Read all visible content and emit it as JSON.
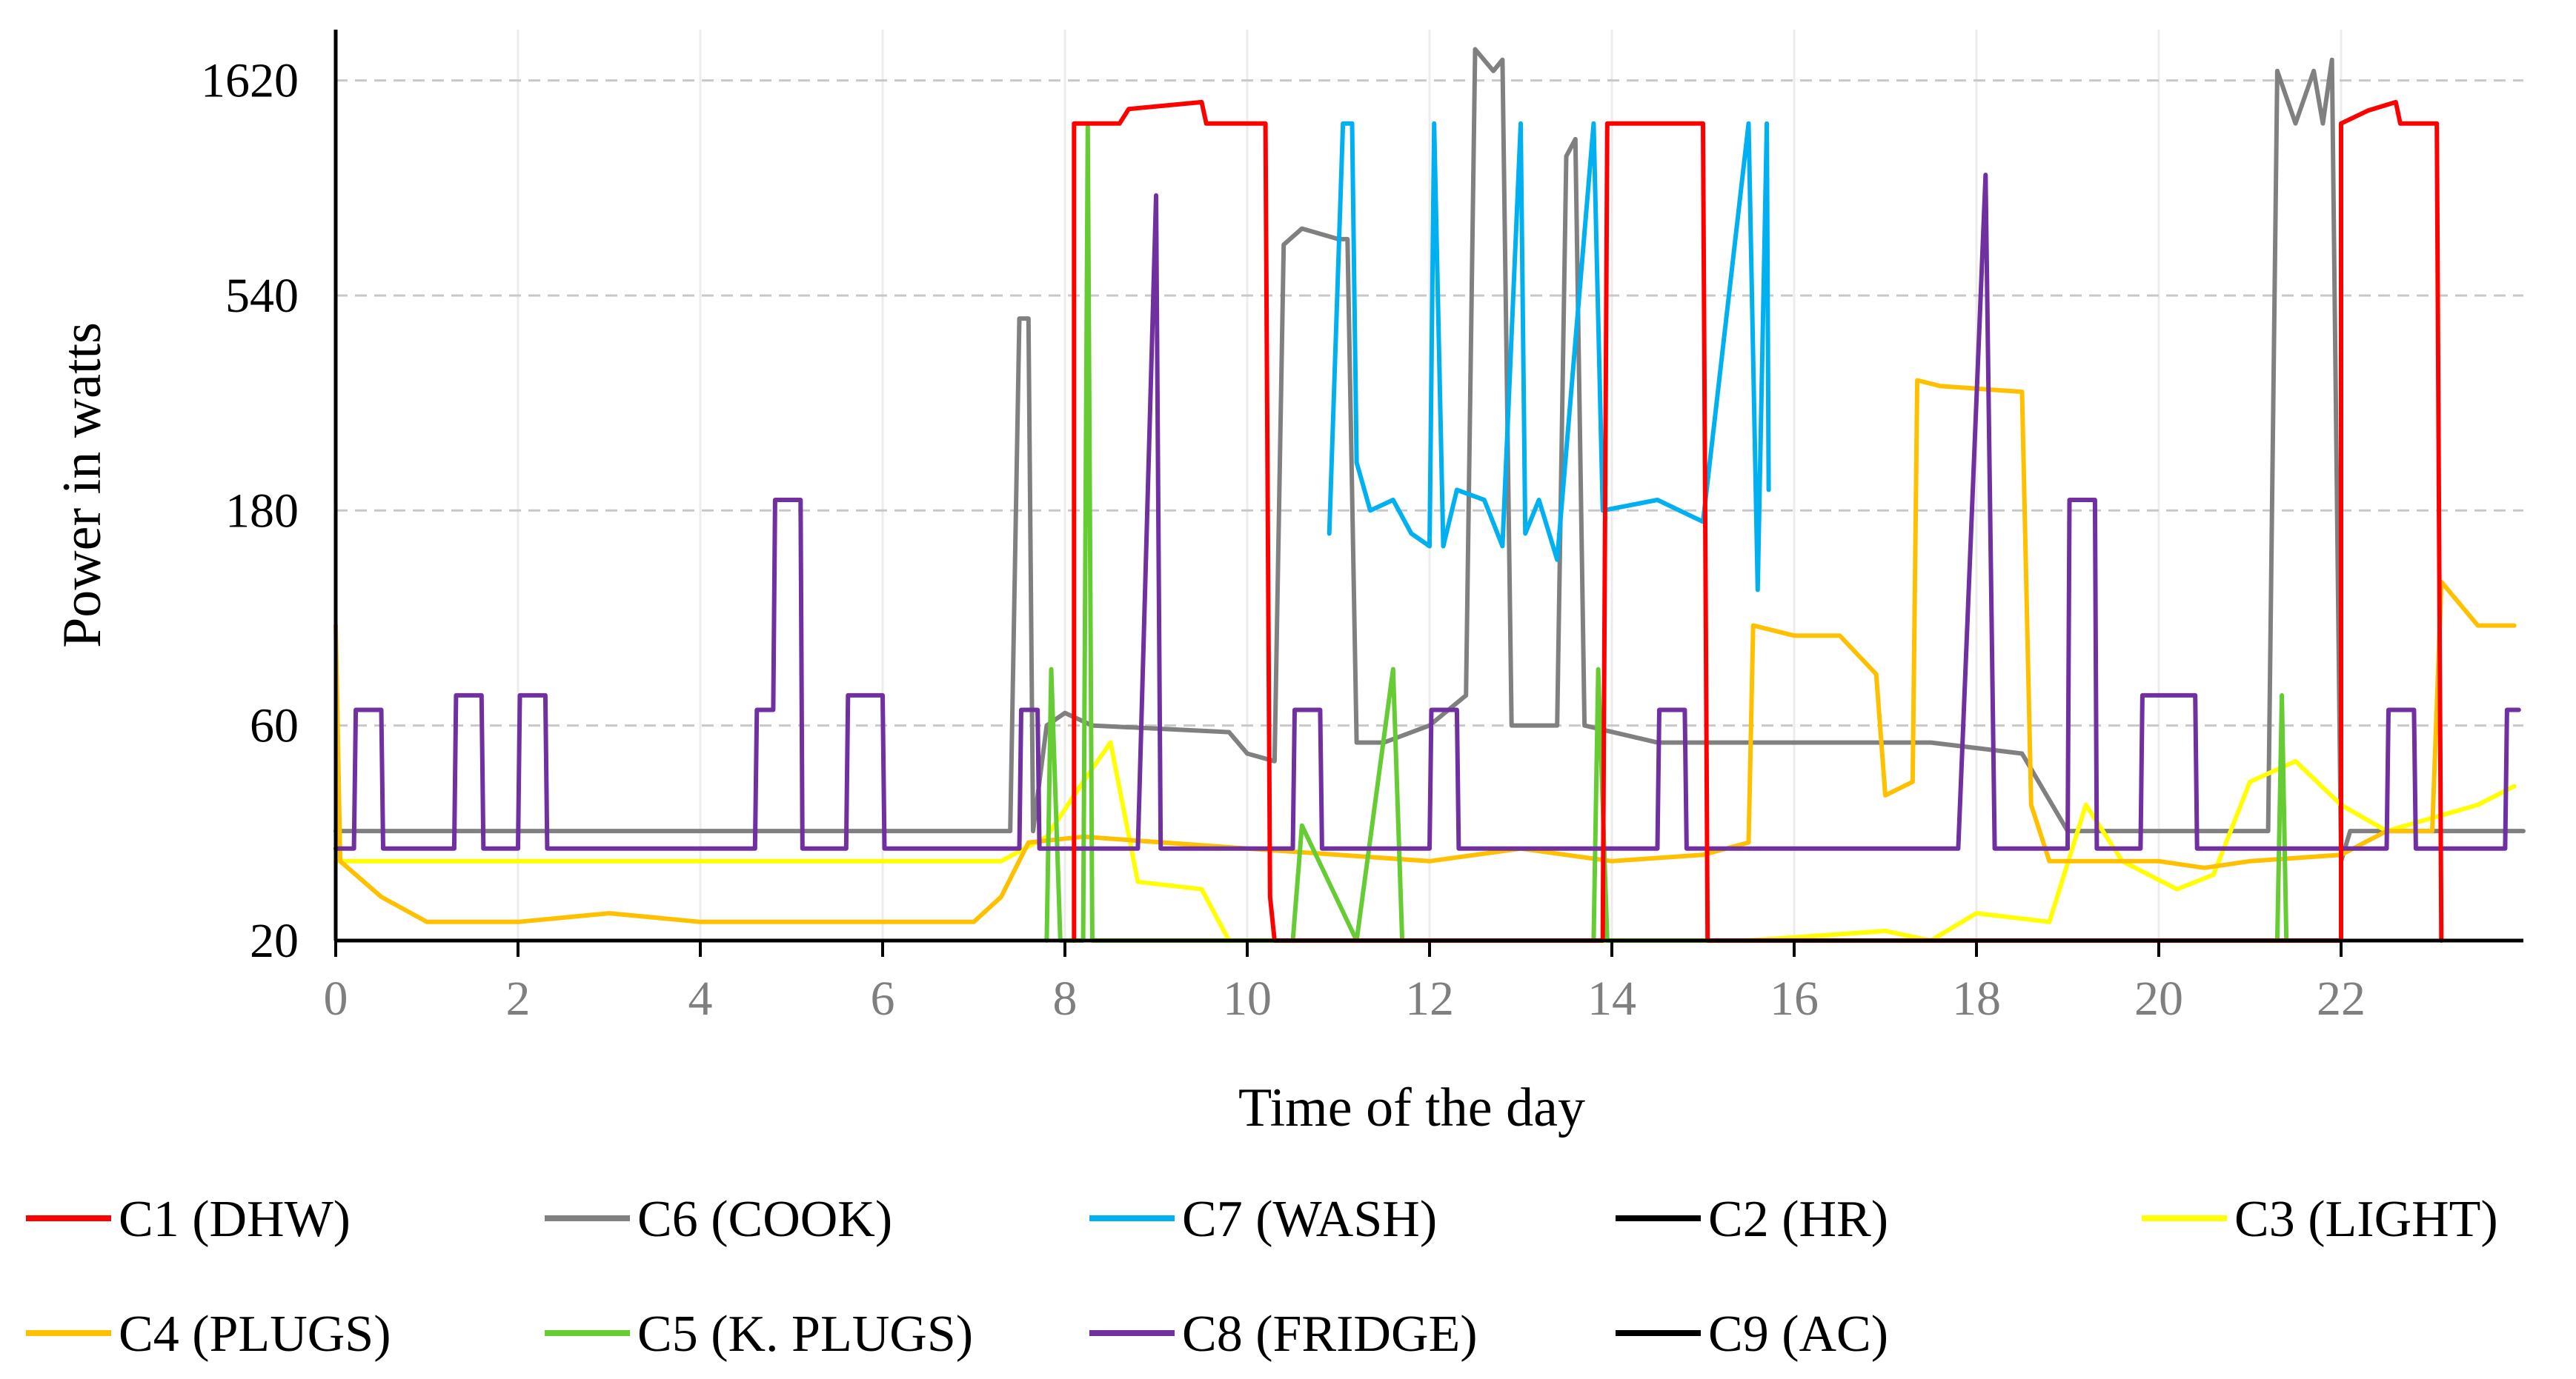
{
  "chart_data": {
    "type": "line",
    "xlabel": "Time of the day",
    "ylabel": "Power in watts",
    "y_scale": "log",
    "xlim": [
      0,
      24
    ],
    "ylim": [
      20,
      2100
    ],
    "x_ticks": [
      0,
      2,
      4,
      6,
      8,
      10,
      12,
      14,
      16,
      18,
      20,
      22
    ],
    "x_tick_labels": [
      "0",
      "2",
      "4",
      "6",
      "8",
      "10",
      "12",
      "14",
      "16",
      "18",
      "20",
      "22"
    ],
    "y_ticks": [
      20,
      60,
      180,
      540,
      1620
    ],
    "y_tick_labels": [
      "20",
      "60",
      "180",
      "540",
      "1620"
    ],
    "grid": "horizontal dashed",
    "legend_position": "bottom",
    "series": [
      {
        "name": "C1 (DHW)",
        "color": "#ff0000",
        "points": [
          [
            8.1,
            20
          ],
          [
            8.1,
            1300
          ],
          [
            8.6,
            1300
          ],
          [
            8.7,
            1400
          ],
          [
            9.5,
            1450
          ],
          [
            9.55,
            1300
          ],
          [
            10.2,
            1300
          ],
          [
            10.25,
            25
          ],
          [
            10.3,
            20
          ],
          [
            13.9,
            20
          ],
          [
            13.95,
            1300
          ],
          [
            15.0,
            1300
          ],
          [
            15.05,
            20
          ],
          [
            22.0,
            20
          ],
          [
            22.0,
            1300
          ],
          [
            22.3,
            1390
          ],
          [
            22.6,
            1450
          ],
          [
            22.65,
            1300
          ],
          [
            23.05,
            1300
          ],
          [
            23.1,
            20
          ]
        ]
      },
      {
        "name": "C6 (COOK)",
        "color": "#808080",
        "points": [
          [
            0,
            35
          ],
          [
            7.4,
            35
          ],
          [
            7.5,
            480
          ],
          [
            7.6,
            480
          ],
          [
            7.65,
            35
          ],
          [
            7.8,
            60
          ],
          [
            8.0,
            64
          ],
          [
            8.3,
            60
          ],
          [
            9.8,
            58
          ],
          [
            10.0,
            52
          ],
          [
            10.3,
            50
          ],
          [
            10.4,
            700
          ],
          [
            10.6,
            760
          ],
          [
            11.0,
            720
          ],
          [
            11.1,
            720
          ],
          [
            11.2,
            55
          ],
          [
            11.5,
            55
          ],
          [
            12.0,
            60
          ],
          [
            12.4,
            70
          ],
          [
            12.5,
            1900
          ],
          [
            12.7,
            1700
          ],
          [
            12.8,
            1800
          ],
          [
            12.9,
            60
          ],
          [
            13.4,
            60
          ],
          [
            13.5,
            1100
          ],
          [
            13.6,
            1200
          ],
          [
            13.7,
            60
          ],
          [
            14.5,
            55
          ],
          [
            15.5,
            55
          ],
          [
            16.5,
            55
          ],
          [
            17.5,
            55
          ],
          [
            18.5,
            52
          ],
          [
            19.0,
            35
          ],
          [
            21.2,
            35
          ],
          [
            21.3,
            1700
          ],
          [
            21.5,
            1300
          ],
          [
            21.7,
            1700
          ],
          [
            21.8,
            1300
          ],
          [
            21.9,
            1800
          ],
          [
            22.0,
            30
          ],
          [
            22.1,
            35
          ],
          [
            24,
            35
          ]
        ]
      },
      {
        "name": "C7 (WASH)",
        "color": "#00b0f0",
        "points": [
          [
            10.9,
            160
          ],
          [
            11.05,
            1300
          ],
          [
            11.15,
            1300
          ],
          [
            11.2,
            230
          ],
          [
            11.35,
            180
          ],
          [
            11.6,
            190
          ],
          [
            11.8,
            160
          ],
          [
            12.0,
            150
          ],
          [
            12.05,
            1300
          ],
          [
            12.15,
            150
          ],
          [
            12.3,
            200
          ],
          [
            12.6,
            190
          ],
          [
            12.8,
            150
          ],
          [
            13.0,
            1300
          ],
          [
            13.05,
            160
          ],
          [
            13.2,
            190
          ],
          [
            13.4,
            140
          ],
          [
            13.8,
            1300
          ],
          [
            13.9,
            180
          ],
          [
            14.5,
            190
          ],
          [
            15.0,
            170
          ],
          [
            15.5,
            1300
          ],
          [
            15.6,
            120
          ],
          [
            15.7,
            1300
          ],
          [
            15.72,
            200
          ]
        ]
      },
      {
        "name": "C2 (HR)",
        "color": "#000000",
        "points": []
      },
      {
        "name": "C3 (LIGHT)",
        "color": "#ffff00",
        "points": [
          [
            0,
            30
          ],
          [
            7.3,
            30
          ],
          [
            7.8,
            34
          ],
          [
            8.2,
            45
          ],
          [
            8.5,
            55
          ],
          [
            8.8,
            27
          ],
          [
            9.5,
            26
          ],
          [
            9.8,
            20
          ],
          [
            15.5,
            20
          ],
          [
            17.0,
            21
          ],
          [
            17.5,
            20
          ],
          [
            18.0,
            23
          ],
          [
            18.8,
            22
          ],
          [
            19.2,
            40
          ],
          [
            19.6,
            30
          ],
          [
            20.2,
            26
          ],
          [
            20.6,
            28
          ],
          [
            21.0,
            45
          ],
          [
            21.5,
            50
          ],
          [
            22.0,
            40
          ],
          [
            22.5,
            35
          ],
          [
            23.5,
            40
          ],
          [
            23.9,
            44
          ]
        ]
      },
      {
        "name": "C4 (PLUGS)",
        "color": "#ffc000",
        "points": [
          [
            0,
            100
          ],
          [
            0.05,
            30
          ],
          [
            0.5,
            25
          ],
          [
            1.0,
            22
          ],
          [
            2.0,
            22
          ],
          [
            3.0,
            23
          ],
          [
            4.0,
            22
          ],
          [
            5.0,
            22
          ],
          [
            6.0,
            22
          ],
          [
            7.0,
            22
          ],
          [
            7.3,
            25
          ],
          [
            7.6,
            33
          ],
          [
            8.2,
            34
          ],
          [
            10.0,
            32
          ],
          [
            11.0,
            31
          ],
          [
            12.0,
            30
          ],
          [
            13.0,
            32
          ],
          [
            14.0,
            30
          ],
          [
            15.0,
            31
          ],
          [
            15.5,
            33
          ],
          [
            15.55,
            100
          ],
          [
            16.0,
            95
          ],
          [
            16.5,
            95
          ],
          [
            16.9,
            78
          ],
          [
            17.0,
            42
          ],
          [
            17.3,
            45
          ],
          [
            17.35,
            350
          ],
          [
            17.6,
            340
          ],
          [
            18.5,
            330
          ],
          [
            18.6,
            40
          ],
          [
            18.8,
            30
          ],
          [
            19.5,
            30
          ],
          [
            20.0,
            30
          ],
          [
            20.5,
            29
          ],
          [
            21.0,
            30
          ],
          [
            22.0,
            31
          ],
          [
            22.5,
            35
          ],
          [
            23.0,
            35
          ],
          [
            23.1,
            125
          ],
          [
            23.5,
            100
          ],
          [
            23.9,
            100
          ]
        ]
      },
      {
        "name": "C5 (K. PLUGS)",
        "color": "#66cc33",
        "points": [
          [
            7.8,
            20
          ],
          [
            7.85,
            80
          ],
          [
            7.95,
            20
          ],
          [
            8.2,
            20
          ],
          [
            8.25,
            1300
          ],
          [
            8.3,
            20
          ],
          [
            10.5,
            20
          ],
          [
            10.6,
            36
          ],
          [
            11.2,
            20
          ],
          [
            11.6,
            80
          ],
          [
            11.7,
            20
          ],
          [
            13.8,
            20
          ],
          [
            13.85,
            80
          ],
          [
            13.95,
            20
          ],
          [
            21.3,
            20
          ],
          [
            21.35,
            70
          ],
          [
            21.4,
            20
          ]
        ]
      },
      {
        "name": "C8 (FRIDGE)",
        "color": "#7030a0",
        "points": [
          [
            0,
            32
          ],
          [
            0.2,
            32
          ],
          [
            0.22,
            65
          ],
          [
            0.5,
            65
          ],
          [
            0.52,
            32
          ],
          [
            1.3,
            32
          ],
          [
            1.32,
            70
          ],
          [
            1.6,
            70
          ],
          [
            1.62,
            32
          ],
          [
            2.0,
            32
          ],
          [
            2.02,
            70
          ],
          [
            2.3,
            70
          ],
          [
            2.32,
            32
          ],
          [
            4.6,
            32
          ],
          [
            4.62,
            65
          ],
          [
            4.8,
            65
          ],
          [
            4.82,
            190
          ],
          [
            5.1,
            190
          ],
          [
            5.12,
            32
          ],
          [
            5.6,
            32
          ],
          [
            5.62,
            70
          ],
          [
            6.0,
            70
          ],
          [
            6.02,
            32
          ],
          [
            7.5,
            32
          ],
          [
            7.52,
            65
          ],
          [
            7.7,
            65
          ],
          [
            7.72,
            32
          ],
          [
            8.8,
            32
          ],
          [
            9.0,
            900
          ],
          [
            9.05,
            32
          ],
          [
            10.5,
            32
          ],
          [
            10.52,
            65
          ],
          [
            10.8,
            65
          ],
          [
            10.82,
            32
          ],
          [
            12.0,
            32
          ],
          [
            12.02,
            65
          ],
          [
            12.3,
            65
          ],
          [
            12.32,
            32
          ],
          [
            14.5,
            32
          ],
          [
            14.52,
            65
          ],
          [
            14.8,
            65
          ],
          [
            14.82,
            32
          ],
          [
            17.8,
            32
          ],
          [
            18.1,
            1000
          ],
          [
            18.2,
            32
          ],
          [
            19.0,
            32
          ],
          [
            19.02,
            190
          ],
          [
            19.3,
            190
          ],
          [
            19.32,
            32
          ],
          [
            19.8,
            32
          ],
          [
            19.82,
            70
          ],
          [
            20.4,
            70
          ],
          [
            20.42,
            32
          ],
          [
            22.5,
            32
          ],
          [
            22.52,
            65
          ],
          [
            22.8,
            65
          ],
          [
            22.82,
            32
          ],
          [
            23.8,
            32
          ],
          [
            23.82,
            65
          ],
          [
            23.95,
            65
          ]
        ]
      },
      {
        "name": "C9 (AC)",
        "color": "#000000",
        "points": []
      }
    ]
  }
}
